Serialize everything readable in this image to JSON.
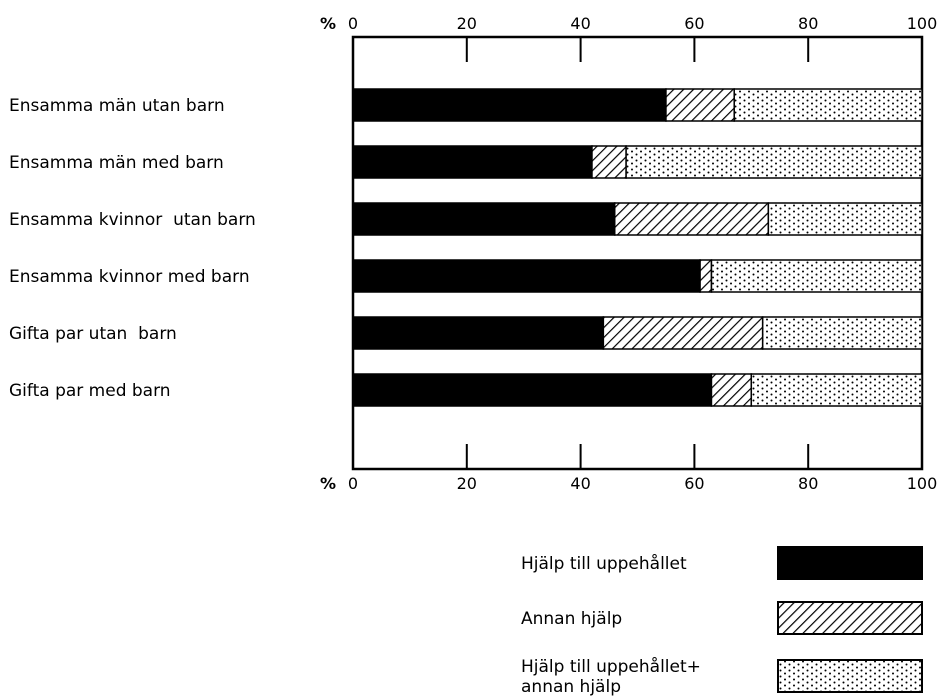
{
  "chart_data": {
    "type": "bar",
    "stacked": true,
    "orientation": "horizontal",
    "axis_unit": "%",
    "xlim": [
      0,
      100
    ],
    "ticks": [
      "0",
      "20",
      "40",
      "60",
      "80",
      "100"
    ],
    "categories": [
      "Ensamma män utan barn",
      "Ensamma män med barn",
      "Ensamma kvinnor  utan barn",
      "Ensamma kvinnor med barn",
      "Gifta par utan  barn",
      "Gifta par med barn"
    ],
    "series": [
      {
        "name": "Hjälp till uppehållet",
        "values": [
          55,
          42,
          46,
          61,
          44,
          63
        ]
      },
      {
        "name": "Annan hjälp",
        "values": [
          12,
          6,
          27,
          2,
          28,
          7
        ]
      },
      {
        "name": "Hjälp till uppehållet+ annan hjälp",
        "values": [
          33,
          52,
          27,
          37,
          28,
          30
        ]
      }
    ],
    "legend": {
      "position": "bottom-right",
      "items": [
        {
          "lines": [
            "Hjälp till uppehållet"
          ],
          "pattern": "solid"
        },
        {
          "lines": [
            "Annan hjälp"
          ],
          "pattern": "hatch"
        },
        {
          "lines": [
            "Hjälp till uppehållet+",
            "annan hjälp"
          ],
          "pattern": "dots"
        }
      ]
    },
    "grid": false,
    "colors": {
      "ink": "#000000",
      "background": "#ffffff"
    }
  }
}
